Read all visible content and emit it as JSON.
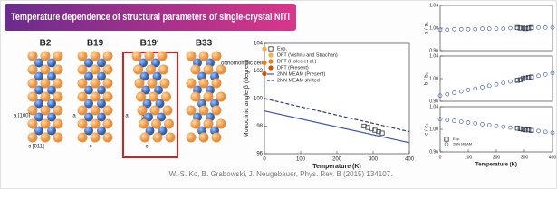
{
  "header": {
    "title": "Temperature dependence of structural parameters of single-crystal NiTi"
  },
  "structures": [
    {
      "label": "B2",
      "annotations": [
        "a [100]",
        "c [011]"
      ]
    },
    {
      "label": "B19",
      "annotations": [
        "a",
        "c"
      ]
    },
    {
      "label": "B19′",
      "annotations": [
        "a",
        "β",
        "c"
      ]
    },
    {
      "label": "B33",
      "annotations": [
        "orthorhombic cell"
      ]
    }
  ],
  "chart_data": [
    {
      "type": "line",
      "ylabel": "Monoclinic angle β (degree)",
      "xlabel": "Temperature (K)",
      "xlim": [
        0,
        400
      ],
      "xticks": [
        0,
        100,
        200,
        300,
        400
      ],
      "ylim": [
        96,
        104
      ],
      "yticks": [
        96,
        98,
        100,
        102,
        104
      ],
      "series": [
        {
          "name": "Exp.",
          "color": "#333333",
          "marker": "square",
          "x": [
            275,
            285,
            295,
            305,
            315,
            325
          ],
          "values": [
            98.0,
            97.9,
            97.8,
            97.7,
            97.6,
            97.5
          ]
        },
        {
          "name": "DFT (Vishnu and Strachan)",
          "color": "#f5b041",
          "marker": "circle",
          "x": [
            0
          ],
          "values": [
            103.6
          ]
        },
        {
          "name": "DFT (Holec et al.)",
          "color": "#e67e22",
          "marker": "circle",
          "x": [
            0
          ],
          "values": [
            102.6
          ]
        },
        {
          "name": "DFT (Present)",
          "color": "#d35400",
          "marker": "circle",
          "x": [
            0
          ],
          "values": [
            101.8
          ]
        },
        {
          "name": "2NN MEAM (Present)",
          "color": "#3a55b4",
          "marker": "line",
          "x": [
            0,
            400
          ],
          "values": [
            99.1,
            96.8
          ]
        },
        {
          "name": "2NN MEAM shifted",
          "color": "#2c3e80",
          "marker": "dashed",
          "x": [
            0,
            400
          ],
          "values": [
            100.0,
            97.6
          ]
        }
      ]
    },
    {
      "type": "scatter",
      "ylabel": "a / a₀",
      "xlim": [
        0,
        400
      ],
      "ylim": [
        0.96,
        1.04
      ],
      "yticks": [
        0.96,
        {
          "value": 1.0,
          "label": "1.00"
        },
        1.04
      ],
      "series": [
        {
          "name": "Exp.",
          "color": "#333333",
          "marker": "square",
          "x": [
            275,
            285,
            295,
            305,
            315,
            325
          ],
          "values": [
            1.001,
            1.0,
            1.0,
            0.999,
            1.0,
            1.001
          ]
        },
        {
          "name": "2NN MEAM",
          "color": "#4466bb",
          "marker": "circle",
          "x": [
            0,
            25,
            50,
            75,
            100,
            125,
            150,
            175,
            200,
            225,
            250,
            275,
            300,
            325,
            350,
            375,
            400
          ],
          "values": [
            0.997,
            0.997,
            0.998,
            0.998,
            0.998,
            0.998,
            0.999,
            0.999,
            0.999,
            0.999,
            1.0,
            1.0,
            1.0,
            1.0,
            1.001,
            1.001,
            1.001
          ]
        }
      ]
    },
    {
      "type": "scatter",
      "ylabel": "b / b₀",
      "xlim": [
        0,
        400
      ],
      "ylim": [
        0.96,
        1.04
      ],
      "yticks": [
        0.96,
        {
          "value": 1.0,
          "label": "1.00"
        },
        1.04
      ],
      "series": [
        {
          "name": "Exp.",
          "color": "#333333",
          "marker": "square",
          "x": [
            275,
            285,
            295,
            305,
            315,
            325
          ],
          "values": [
            0.997,
            0.998,
            1.0,
            1.001,
            1.002,
            1.003
          ]
        },
        {
          "name": "2NN MEAM",
          "color": "#4466bb",
          "marker": "circle",
          "x": [
            0,
            25,
            50,
            75,
            100,
            125,
            150,
            175,
            200,
            225,
            250,
            275,
            300,
            325,
            350,
            375,
            400
          ],
          "values": [
            0.97,
            0.9725,
            0.975,
            0.9775,
            0.98,
            0.9825,
            0.985,
            0.9875,
            0.99,
            0.9925,
            0.995,
            0.9975,
            1.0,
            1.0025,
            1.005,
            1.0075,
            1.01
          ]
        }
      ]
    },
    {
      "type": "scatter",
      "ylabel": "c / c₀",
      "xlabel": "Temperature (K)",
      "xlim": [
        0,
        400
      ],
      "xticks": [
        0,
        100,
        200,
        300,
        400
      ],
      "ylim": [
        0.96,
        1.04
      ],
      "yticks": [
        0.96,
        {
          "value": 1.0,
          "label": "1.00"
        },
        1.04
      ],
      "legend": "lower left",
      "series": [
        {
          "name": "Exp.",
          "color": "#333333",
          "marker": "square",
          "x": [
            275,
            285,
            295,
            305,
            315,
            325
          ],
          "values": [
            1.002,
            1.001,
            1.0,
            0.999,
            0.999,
            0.998
          ]
        },
        {
          "name": "2NN MEAM",
          "color": "#4466bb",
          "marker": "circle",
          "x": [
            0,
            25,
            50,
            75,
            100,
            125,
            150,
            175,
            200,
            225,
            250,
            275,
            300,
            325,
            350,
            375,
            400
          ],
          "values": [
            1.018,
            1.0165,
            1.015,
            1.0135,
            1.012,
            1.0105,
            1.009,
            1.0075,
            1.006,
            1.0045,
            1.003,
            1.0015,
            1.0,
            0.9985,
            0.997,
            0.9955,
            0.994
          ]
        }
      ]
    }
  ],
  "citation": "W.-S. Ko, B. Grabowski, J. Neugebauer,  Phys. Rev. B (2015)  134107."
}
